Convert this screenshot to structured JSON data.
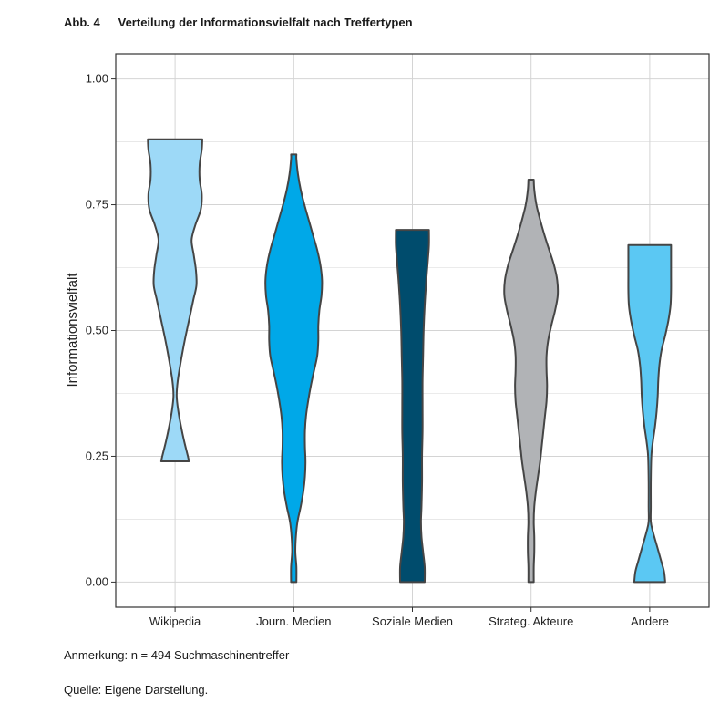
{
  "figure": {
    "number": "Abb. 4",
    "title": "Verteilung der Informationsvielfalt nach Treffertypen",
    "note": "Anmerkung: n = 494 Suchmaschinentreffer",
    "source": "Quelle: Eigene Darstellung."
  },
  "chart_data": {
    "type": "violin",
    "ylabel": "Informationsvielfalt",
    "xlabel": "",
    "ylim": [
      -0.05,
      1.05
    ],
    "yticks": [
      0.0,
      0.25,
      0.5,
      0.75,
      1.0
    ],
    "ytick_labels": [
      "0.00",
      "0.25",
      "0.50",
      "0.75",
      "1.00"
    ],
    "grid": true,
    "border_color": "#444444",
    "categories": [
      "Wikipedia",
      "Journ. Medien",
      "Soziale Medien",
      "Strateg. Akteure",
      "Andere"
    ],
    "series": [
      {
        "category": "Wikipedia",
        "color": "#9dd9f7",
        "min": 0.24,
        "max": 0.88,
        "profile": [
          [
            0.24,
            0.26
          ],
          [
            0.25,
            0.24
          ],
          [
            0.28,
            0.17
          ],
          [
            0.31,
            0.11
          ],
          [
            0.34,
            0.06
          ],
          [
            0.37,
            0.03
          ],
          [
            0.4,
            0.05
          ],
          [
            0.44,
            0.11
          ],
          [
            0.48,
            0.18
          ],
          [
            0.52,
            0.26
          ],
          [
            0.56,
            0.34
          ],
          [
            0.59,
            0.4
          ],
          [
            0.62,
            0.39
          ],
          [
            0.65,
            0.35
          ],
          [
            0.68,
            0.31
          ],
          [
            0.71,
            0.38
          ],
          [
            0.74,
            0.48
          ],
          [
            0.77,
            0.5
          ],
          [
            0.8,
            0.46
          ],
          [
            0.83,
            0.46
          ],
          [
            0.86,
            0.5
          ],
          [
            0.88,
            0.51
          ]
        ]
      },
      {
        "category": "Journ. Medien",
        "color": "#00a8e8",
        "min": 0.0,
        "max": 0.85,
        "profile": [
          [
            0.0,
            0.05
          ],
          [
            0.03,
            0.05
          ],
          [
            0.06,
            0.03
          ],
          [
            0.09,
            0.04
          ],
          [
            0.12,
            0.07
          ],
          [
            0.15,
            0.13
          ],
          [
            0.18,
            0.18
          ],
          [
            0.21,
            0.21
          ],
          [
            0.24,
            0.22
          ],
          [
            0.27,
            0.21
          ],
          [
            0.3,
            0.21
          ],
          [
            0.33,
            0.23
          ],
          [
            0.36,
            0.27
          ],
          [
            0.39,
            0.32
          ],
          [
            0.42,
            0.38
          ],
          [
            0.45,
            0.44
          ],
          [
            0.48,
            0.46
          ],
          [
            0.51,
            0.46
          ],
          [
            0.54,
            0.48
          ],
          [
            0.57,
            0.52
          ],
          [
            0.6,
            0.53
          ],
          [
            0.63,
            0.5
          ],
          [
            0.66,
            0.44
          ],
          [
            0.69,
            0.36
          ],
          [
            0.72,
            0.28
          ],
          [
            0.75,
            0.2
          ],
          [
            0.78,
            0.13
          ],
          [
            0.81,
            0.08
          ],
          [
            0.84,
            0.05
          ],
          [
            0.85,
            0.05
          ]
        ]
      },
      {
        "category": "Soziale Medien",
        "color": "#004c6d",
        "min": 0.0,
        "max": 0.7,
        "profile": [
          [
            0.0,
            0.23
          ],
          [
            0.03,
            0.23
          ],
          [
            0.06,
            0.2
          ],
          [
            0.09,
            0.17
          ],
          [
            0.12,
            0.16
          ],
          [
            0.15,
            0.17
          ],
          [
            0.2,
            0.18
          ],
          [
            0.25,
            0.18
          ],
          [
            0.3,
            0.19
          ],
          [
            0.35,
            0.19
          ],
          [
            0.4,
            0.19
          ],
          [
            0.45,
            0.2
          ],
          [
            0.5,
            0.21
          ],
          [
            0.55,
            0.23
          ],
          [
            0.6,
            0.26
          ],
          [
            0.64,
            0.29
          ],
          [
            0.67,
            0.31
          ],
          [
            0.7,
            0.31
          ]
        ]
      },
      {
        "category": "Strateg. Akteure",
        "color": "#b1b3b6",
        "min": 0.0,
        "max": 0.8,
        "profile": [
          [
            0.0,
            0.05
          ],
          [
            0.03,
            0.05
          ],
          [
            0.06,
            0.06
          ],
          [
            0.09,
            0.06
          ],
          [
            0.12,
            0.05
          ],
          [
            0.15,
            0.06
          ],
          [
            0.18,
            0.09
          ],
          [
            0.21,
            0.13
          ],
          [
            0.24,
            0.17
          ],
          [
            0.27,
            0.2
          ],
          [
            0.3,
            0.23
          ],
          [
            0.33,
            0.26
          ],
          [
            0.36,
            0.29
          ],
          [
            0.39,
            0.3
          ],
          [
            0.42,
            0.29
          ],
          [
            0.45,
            0.29
          ],
          [
            0.48,
            0.32
          ],
          [
            0.51,
            0.38
          ],
          [
            0.54,
            0.45
          ],
          [
            0.57,
            0.5
          ],
          [
            0.6,
            0.49
          ],
          [
            0.63,
            0.43
          ],
          [
            0.66,
            0.34
          ],
          [
            0.69,
            0.25
          ],
          [
            0.72,
            0.17
          ],
          [
            0.75,
            0.1
          ],
          [
            0.78,
            0.06
          ],
          [
            0.8,
            0.05
          ]
        ]
      },
      {
        "category": "Andere",
        "color": "#5bc8f3",
        "min": 0.0,
        "max": 0.67,
        "profile": [
          [
            0.0,
            0.29
          ],
          [
            0.02,
            0.27
          ],
          [
            0.04,
            0.22
          ],
          [
            0.07,
            0.14
          ],
          [
            0.1,
            0.06
          ],
          [
            0.12,
            0.02
          ],
          [
            0.15,
            0.02
          ],
          [
            0.2,
            0.02
          ],
          [
            0.25,
            0.03
          ],
          [
            0.28,
            0.06
          ],
          [
            0.31,
            0.1
          ],
          [
            0.34,
            0.13
          ],
          [
            0.37,
            0.15
          ],
          [
            0.4,
            0.16
          ],
          [
            0.43,
            0.18
          ],
          [
            0.46,
            0.22
          ],
          [
            0.49,
            0.29
          ],
          [
            0.52,
            0.35
          ],
          [
            0.55,
            0.39
          ],
          [
            0.58,
            0.4
          ],
          [
            0.61,
            0.4
          ],
          [
            0.64,
            0.4
          ],
          [
            0.67,
            0.4
          ]
        ]
      }
    ]
  }
}
